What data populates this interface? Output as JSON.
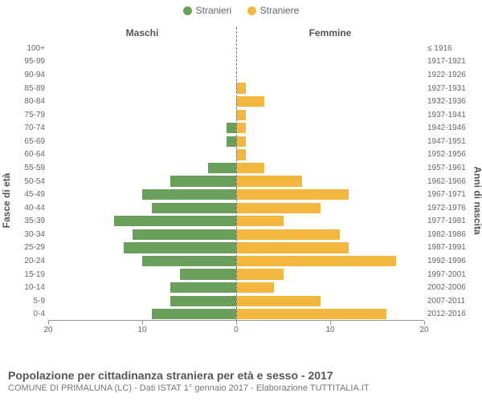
{
  "legend": {
    "male": {
      "label": "Stranieri",
      "color": "#6a9e5b"
    },
    "female": {
      "label": "Straniere",
      "color": "#f3b63f"
    }
  },
  "headers": {
    "left": "Maschi",
    "right": "Femmine"
  },
  "yaxis": {
    "left_title": "Fasce di età",
    "right_title": "Anni di nascita"
  },
  "x_range": {
    "min": -20,
    "max": 20
  },
  "x_ticks": [
    -20,
    -10,
    0,
    10,
    20
  ],
  "x_tick_labels": [
    "20",
    "10",
    "0",
    "10",
    "20"
  ],
  "colors": {
    "male_bar": "#6a9e5b",
    "female_bar": "#f3b63f",
    "axis": "#999999",
    "text": "#666666",
    "center_line": "#777777",
    "background": "#ffffff"
  },
  "typography": {
    "tick_fontsize": 10,
    "header_fontsize": 12,
    "label_fontsize": 10,
    "title_fontsize": 14,
    "subtitle_fontsize": 11
  },
  "rows": [
    {
      "age": "100+",
      "birth": "≤ 1916",
      "m": 0,
      "f": 0
    },
    {
      "age": "95-99",
      "birth": "1917-1921",
      "m": 0,
      "f": 0
    },
    {
      "age": "90-94",
      "birth": "1922-1926",
      "m": 0,
      "f": 0
    },
    {
      "age": "85-89",
      "birth": "1927-1931",
      "m": 0,
      "f": 1
    },
    {
      "age": "80-84",
      "birth": "1932-1936",
      "m": 0,
      "f": 3
    },
    {
      "age": "75-79",
      "birth": "1937-1941",
      "m": 0,
      "f": 1
    },
    {
      "age": "70-74",
      "birth": "1942-1946",
      "m": 1,
      "f": 1
    },
    {
      "age": "65-69",
      "birth": "1947-1951",
      "m": 1,
      "f": 1
    },
    {
      "age": "60-64",
      "birth": "1952-1956",
      "m": 0,
      "f": 1
    },
    {
      "age": "55-59",
      "birth": "1957-1961",
      "m": 3,
      "f": 3
    },
    {
      "age": "50-54",
      "birth": "1962-1966",
      "m": 7,
      "f": 7
    },
    {
      "age": "45-49",
      "birth": "1967-1971",
      "m": 10,
      "f": 12
    },
    {
      "age": "40-44",
      "birth": "1972-1976",
      "m": 9,
      "f": 9
    },
    {
      "age": "35-39",
      "birth": "1977-1981",
      "m": 13,
      "f": 5
    },
    {
      "age": "30-34",
      "birth": "1982-1986",
      "m": 11,
      "f": 11
    },
    {
      "age": "25-29",
      "birth": "1987-1991",
      "m": 12,
      "f": 12
    },
    {
      "age": "20-24",
      "birth": "1992-1996",
      "m": 10,
      "f": 17
    },
    {
      "age": "15-19",
      "birth": "1997-2001",
      "m": 6,
      "f": 5
    },
    {
      "age": "10-14",
      "birth": "2002-2006",
      "m": 7,
      "f": 4
    },
    {
      "age": "5-9",
      "birth": "2007-2011",
      "m": 7,
      "f": 9
    },
    {
      "age": "0-4",
      "birth": "2012-2016",
      "m": 9,
      "f": 16
    }
  ],
  "footer": {
    "title": "Popolazione per cittadinanza straniera per età e sesso - 2017",
    "subtitle": "COMUNE DI PRIMALUNA (LC) - Dati ISTAT 1° gennaio 2017 - Elaborazione TUTTITALIA.IT"
  }
}
